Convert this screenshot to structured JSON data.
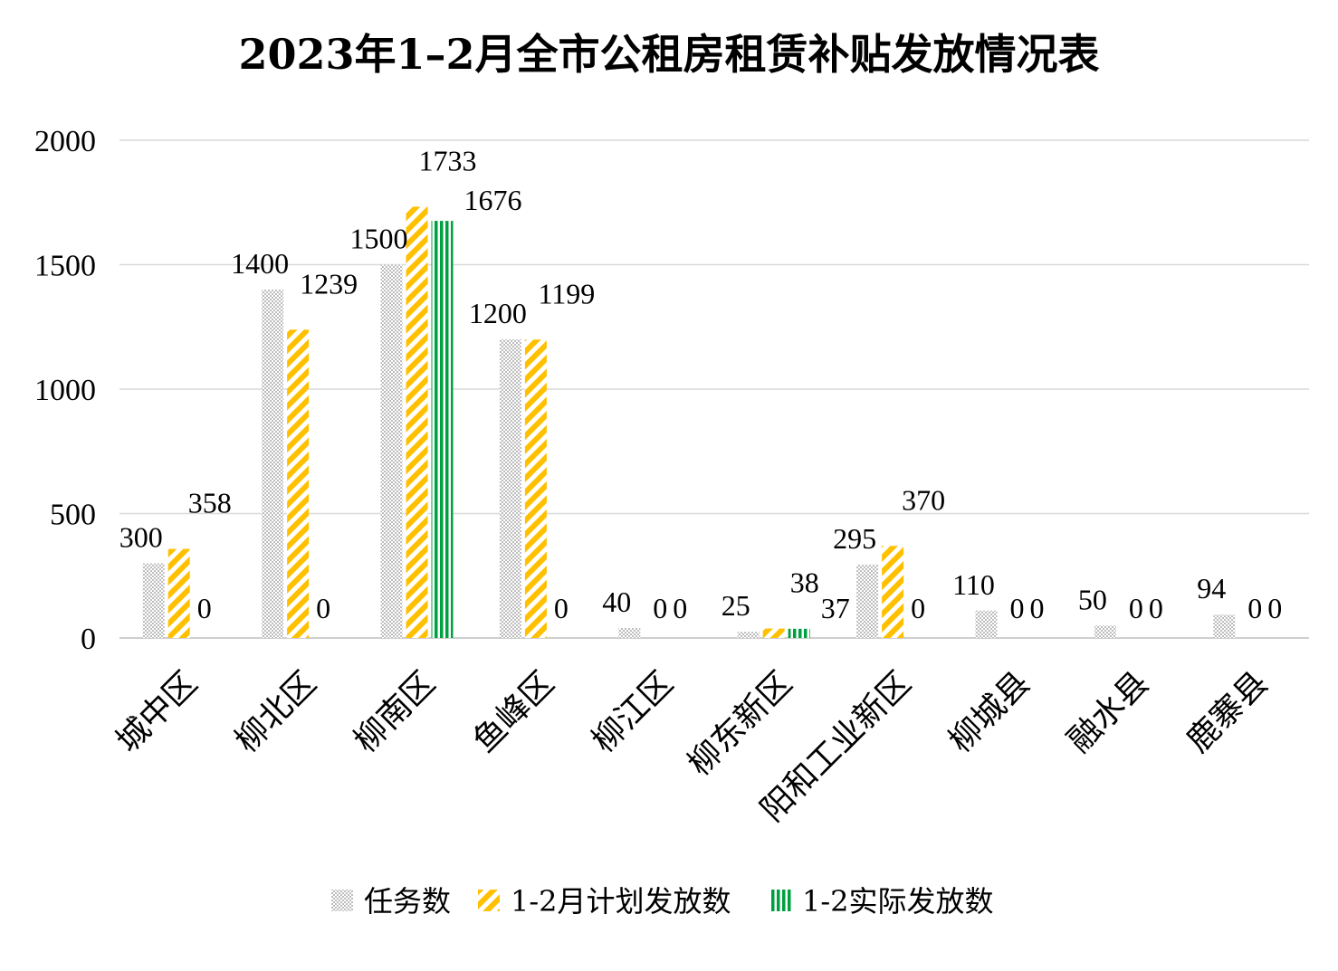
{
  "chart_data": {
    "type": "bar",
    "title": "2023年1–2月全市公租房租赁补贴发放情况表",
    "categories": [
      "城中区",
      "柳北区",
      "柳南区",
      "鱼峰区",
      "柳江区",
      "柳东新区",
      "阳和工业新区",
      "柳城县",
      "融水县",
      "鹿寨县"
    ],
    "series": [
      {
        "name": "任务数",
        "values": [
          300,
          1400,
          1500,
          1200,
          40,
          25,
          295,
          110,
          50,
          94
        ],
        "color": "#c8c8c8",
        "pattern": "dots"
      },
      {
        "name": "1-2月计划发放数",
        "values": [
          358,
          1239,
          1733,
          1199,
          0,
          38,
          370,
          0,
          0,
          0
        ],
        "color": "#ffc000",
        "pattern": "diagonal-stripes"
      },
      {
        "name": "1-2实际发放数",
        "values": [
          0,
          0,
          1676,
          0,
          0,
          37,
          0,
          0,
          0,
          0
        ],
        "color": "#00a040",
        "pattern": "vertical-stripes"
      }
    ],
    "ylim": [
      0,
      2000
    ],
    "yticks": [
      0,
      500,
      1000,
      1500,
      2000
    ],
    "xlabel": "",
    "ylabel": "",
    "grid": true,
    "legend_position": "bottom"
  }
}
